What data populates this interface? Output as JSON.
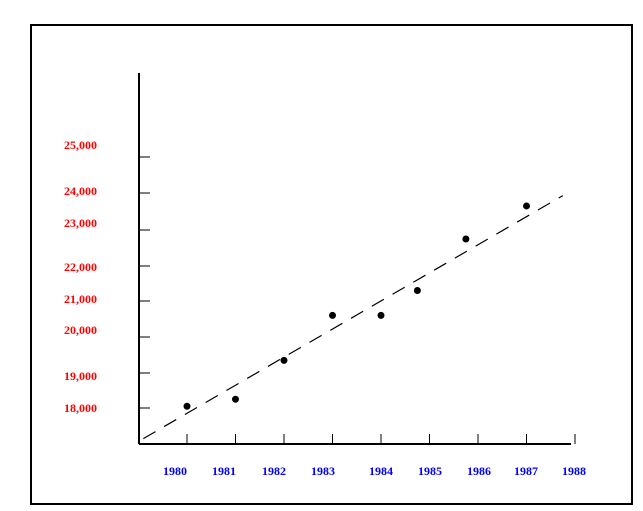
{
  "chart_data": {
    "type": "scatter",
    "title": "",
    "xlabel": "",
    "ylabel": "",
    "x_ticks": [
      "1980",
      "1981",
      "1982",
      "1983",
      "1984",
      "1985",
      "1986",
      "1987",
      "1988"
    ],
    "y_tick_labels": [
      "25,000",
      "24,000",
      "23,000",
      "22,000",
      "21,000",
      "20,000",
      "19,000",
      "18,000"
    ],
    "series": [
      {
        "points": [
          {
            "x": 1980,
            "y": 18050
          },
          {
            "x": 1981,
            "y": 18250
          },
          {
            "x": 1982,
            "y": 19350
          },
          {
            "x": 1983,
            "y": 20600
          },
          {
            "x": 1984,
            "y": 20600
          },
          {
            "x": 1984.75,
            "y": 21300
          },
          {
            "x": 1985.75,
            "y": 22750
          },
          {
            "x": 1987,
            "y": 23650
          }
        ]
      }
    ],
    "trend_line": {
      "style": "dashed",
      "from": {
        "x": 1979.1,
        "y": 17150
      },
      "to": {
        "x": 1987.75,
        "y": 23930
      }
    },
    "grid": false,
    "legend": "none"
  },
  "colors": {
    "x_tick_labels": "#0000ff",
    "y_tick_labels": "#ff0000",
    "axes": "#000000",
    "points": "#000000",
    "frame": "#000000"
  }
}
